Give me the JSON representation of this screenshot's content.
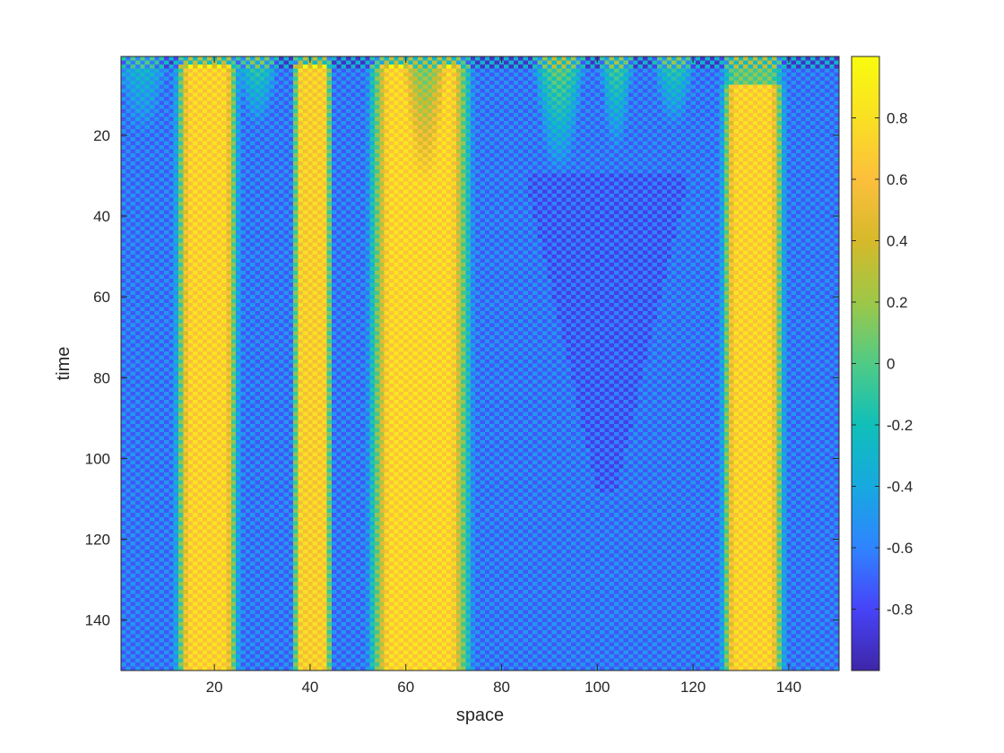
{
  "chart_data": {
    "type": "heatmap",
    "title": "",
    "xlabel": "space",
    "ylabel": "time",
    "xlim": [
      0.5,
      150.5
    ],
    "ylim": [
      0.5,
      152.5
    ],
    "y_direction": "reverse",
    "x_ticks": [
      20,
      40,
      60,
      80,
      100,
      120,
      140
    ],
    "y_ticks": [
      20,
      40,
      60,
      80,
      100,
      120,
      140
    ],
    "grid": false,
    "colormap": "parula",
    "colormap_stops": [
      "#3e26a8",
      "#4743f8",
      "#2f84ff",
      "#17a9e0",
      "#10bfb9",
      "#50cb86",
      "#9dc748",
      "#d6b92a",
      "#fcbf3c",
      "#f9e023",
      "#f9fb0e"
    ],
    "color_limits": [
      -1,
      1
    ],
    "colorbar": {
      "ticks": [
        0.8,
        0.6,
        0.4,
        0.2,
        0,
        -0.2,
        -0.4,
        -0.6,
        -0.8
      ],
      "tick_labels": [
        "0.8",
        "0.6",
        "0.4",
        "0.2",
        "0",
        "-0.2",
        "-0.4",
        "-0.6",
        "-0.8"
      ]
    },
    "grid_size": {
      "rows": 152,
      "cols": 150
    },
    "background_value": -0.62,
    "checkerboard_amplitude": 0.12,
    "bands": [
      {
        "x_start": 13,
        "x_end": 24,
        "peak": 0.72,
        "onset_time": 3
      },
      {
        "x_start": 37,
        "x_end": 44,
        "peak": 0.68,
        "onset_time": 3
      },
      {
        "x_start": 54,
        "x_end": 72,
        "peak": 0.74,
        "onset_time": 3
      },
      {
        "x_start": 127,
        "x_end": 138,
        "peak": 0.72,
        "onset_time": 8
      }
    ],
    "transient_plumes": [
      {
        "x_center": 29,
        "half_width": 5,
        "top_value": -0.05,
        "decay_time": 18
      },
      {
        "x_center": 64,
        "half_width": 5,
        "top_value": 0.0,
        "decay_time": 32
      },
      {
        "x_center": 92,
        "half_width": 6,
        "top_value": 0.12,
        "decay_time": 30
      },
      {
        "x_center": 104,
        "half_width": 4,
        "top_value": 0.0,
        "decay_time": 24
      },
      {
        "x_center": 116,
        "half_width": 5,
        "top_value": -0.05,
        "decay_time": 18
      },
      {
        "x_center": 5,
        "half_width": 6,
        "top_value": -0.25,
        "decay_time": 20
      }
    ],
    "deep_region": {
      "x_center": 102,
      "half_width_top": 17,
      "half_width_bottom": 2,
      "time_start": 30,
      "time_end": 108,
      "value": -0.72
    }
  },
  "colors": {
    "axis": "#262626",
    "background": "#ffffff"
  }
}
